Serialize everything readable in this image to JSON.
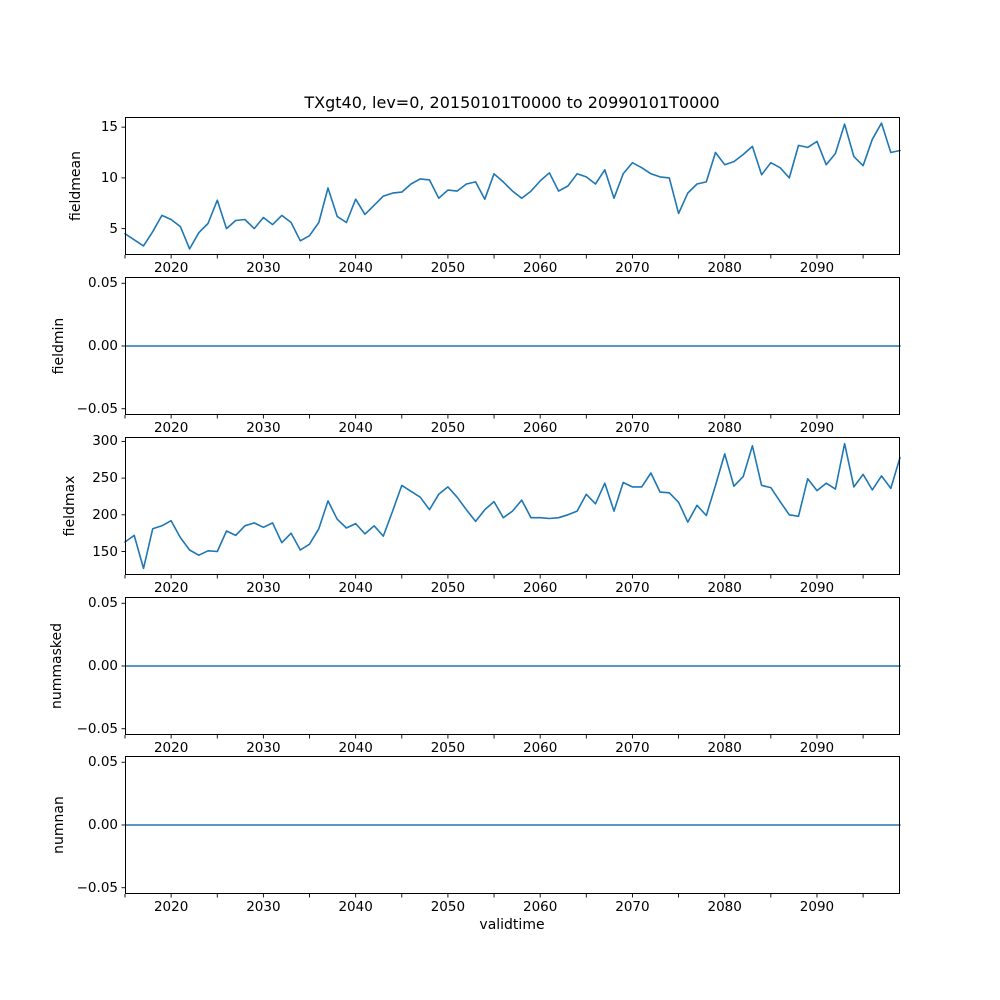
{
  "title": "TXgt40, lev=0, 20150101T0000 to 20990101T0000",
  "xlabel": "validtime",
  "chart_data": {
    "type": "line",
    "line_color": "#1f77b4",
    "grid": false,
    "legend": "none",
    "xlim": [
      2015,
      2099
    ],
    "x_years": [
      2015,
      2016,
      2017,
      2018,
      2019,
      2020,
      2021,
      2022,
      2023,
      2024,
      2025,
      2026,
      2027,
      2028,
      2029,
      2030,
      2031,
      2032,
      2033,
      2034,
      2035,
      2036,
      2037,
      2038,
      2039,
      2040,
      2041,
      2042,
      2043,
      2044,
      2045,
      2046,
      2047,
      2048,
      2049,
      2050,
      2051,
      2052,
      2053,
      2054,
      2055,
      2056,
      2057,
      2058,
      2059,
      2060,
      2061,
      2062,
      2063,
      2064,
      2065,
      2066,
      2067,
      2068,
      2069,
      2070,
      2071,
      2072,
      2073,
      2074,
      2075,
      2076,
      2077,
      2078,
      2079,
      2080,
      2081,
      2082,
      2083,
      2084,
      2085,
      2086,
      2087,
      2088,
      2089,
      2090,
      2091,
      2092,
      2093,
      2094,
      2095,
      2096,
      2097,
      2098,
      2099
    ],
    "xticks_all": [
      2015,
      2020,
      2025,
      2030,
      2035,
      2040,
      2045,
      2050,
      2055,
      2060,
      2065,
      2070,
      2075,
      2080,
      2085,
      2090,
      2095
    ],
    "xtick_values": [
      2020,
      2030,
      2040,
      2050,
      2060,
      2070,
      2080,
      2090
    ],
    "xtick_labels": [
      "2020",
      "2030",
      "2040",
      "2050",
      "2060",
      "2070",
      "2080",
      "2090"
    ],
    "subplots": [
      {
        "ylabel": "fieldmean",
        "ylim": [
          2.4,
          16.0
        ],
        "ytick_values": [
          5,
          10,
          15
        ],
        "ytick_labels": [
          "5",
          "10",
          "15"
        ],
        "values": [
          4.5,
          3.9,
          3.3,
          4.7,
          6.3,
          5.9,
          5.2,
          3.0,
          4.6,
          5.5,
          7.8,
          5.0,
          5.8,
          5.9,
          5.0,
          6.1,
          5.4,
          6.3,
          5.6,
          3.8,
          4.3,
          5.6,
          9.0,
          6.2,
          5.6,
          7.9,
          6.4,
          7.3,
          8.2,
          8.5,
          8.6,
          9.4,
          9.9,
          9.8,
          8.0,
          8.8,
          8.7,
          9.4,
          9.6,
          7.9,
          10.4,
          9.6,
          8.7,
          8.0,
          8.7,
          9.7,
          10.5,
          8.7,
          9.2,
          10.4,
          10.1,
          9.4,
          10.8,
          8.0,
          10.4,
          11.5,
          11.0,
          10.4,
          10.1,
          10.0,
          6.5,
          8.5,
          9.4,
          9.6,
          12.5,
          11.3,
          11.6,
          12.3,
          13.1,
          10.3,
          11.5,
          11.0,
          10.0,
          13.2,
          13.0,
          13.6,
          11.3,
          12.4,
          15.3,
          12.1,
          11.2,
          13.8,
          15.4,
          12.5,
          12.7
        ]
      },
      {
        "ylabel": "fieldmin",
        "ylim": [
          -0.055,
          0.055
        ],
        "ytick_values": [
          -0.05,
          0.0,
          0.05
        ],
        "ytick_labels": [
          "−0.05",
          "0.00",
          "0.05"
        ],
        "values": 0
      },
      {
        "ylabel": "fieldmax",
        "ylim": [
          118,
          306
        ],
        "ytick_values": [
          150,
          200,
          250,
          300
        ],
        "ytick_labels": [
          "150",
          "200",
          "250",
          "300"
        ],
        "values": [
          163,
          172,
          127,
          181,
          185,
          192,
          169,
          152,
          145,
          151,
          150,
          178,
          172,
          185,
          189,
          183,
          189,
          162,
          175,
          152,
          160,
          181,
          219,
          194,
          182,
          188,
          174,
          185,
          171,
          205,
          240,
          232,
          224,
          207,
          228,
          238,
          224,
          207,
          191,
          207,
          218,
          196,
          205,
          220,
          196,
          196,
          195,
          196,
          200,
          205,
          228,
          215,
          243,
          205,
          244,
          238,
          238,
          257,
          231,
          230,
          217,
          190,
          213,
          199,
          240,
          283,
          239,
          252,
          294,
          240,
          237,
          218,
          200,
          198,
          249,
          233,
          243,
          235,
          297,
          238,
          255,
          234,
          253,
          236,
          278
        ]
      },
      {
        "ylabel": "nummasked",
        "ylim": [
          -0.055,
          0.055
        ],
        "ytick_values": [
          -0.05,
          0.0,
          0.05
        ],
        "ytick_labels": [
          "−0.05",
          "0.00",
          "0.05"
        ],
        "values": 0
      },
      {
        "ylabel": "numnan",
        "ylim": [
          -0.055,
          0.055
        ],
        "ytick_values": [
          -0.05,
          0.0,
          0.05
        ],
        "ytick_labels": [
          "−0.05",
          "0.00",
          "0.05"
        ],
        "values": 0
      }
    ]
  }
}
